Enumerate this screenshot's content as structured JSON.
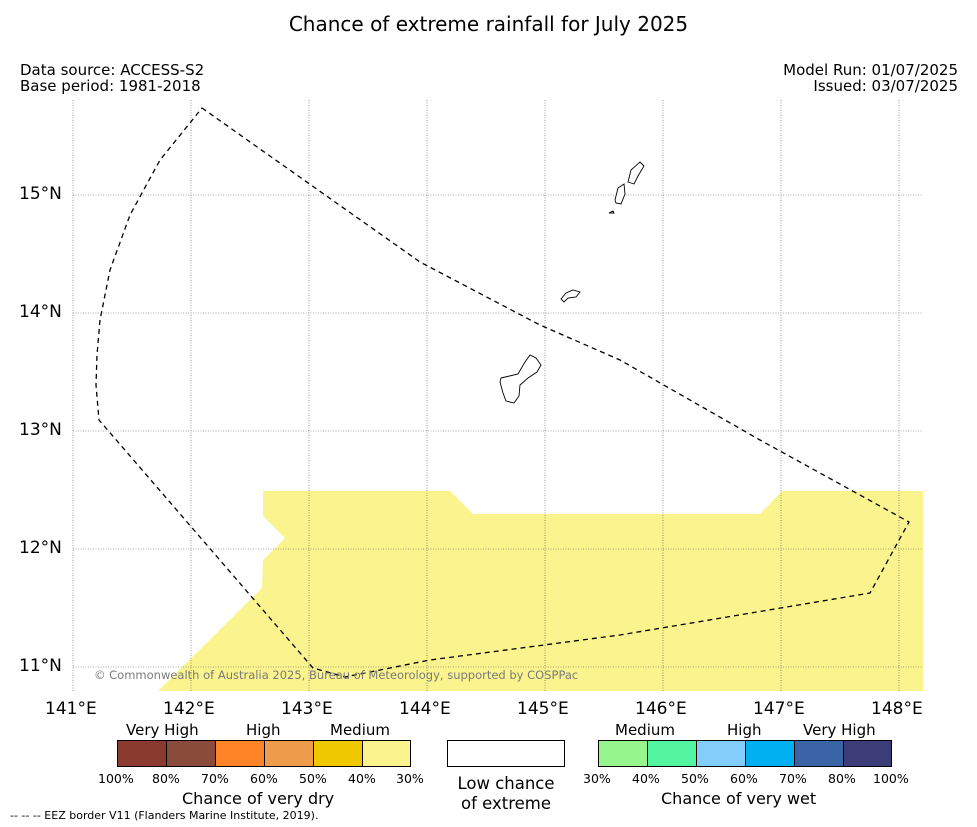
{
  "title": "Chance of extreme rainfall for July 2025",
  "meta": {
    "data_source": "Data source: ACCESS-S2",
    "base_period": "Base period: 1981-2018",
    "model_run": "Model Run: 01/07/2025",
    "issued": "Issued: 03/07/2025"
  },
  "map": {
    "lon_ticks": [
      "141°E",
      "142°E",
      "143°E",
      "144°E",
      "145°E",
      "146°E",
      "147°E",
      "148°E"
    ],
    "lat_ticks": [
      "15°N",
      "14°N",
      "13°N",
      "12°N",
      "11°N"
    ],
    "copyright": "© Commonwealth of Australia 2025, Bureau of Meteorology, supported by COSPPac",
    "fill_color": "#fbf38e",
    "eez_style": "dashed"
  },
  "legend": {
    "dry": {
      "categories": [
        "Very High",
        "High",
        "Medium"
      ],
      "colors": [
        "#8b3a2f",
        "#8b4b3a",
        "#ff8427",
        "#ee9c4c",
        "#f0c800",
        "#fbf38e"
      ],
      "ticks": [
        "100%",
        "80%",
        "70%",
        "60%",
        "50%",
        "40%",
        "30%"
      ],
      "title": "Chance of very dry"
    },
    "low": {
      "color": "#ffffff",
      "line1": "Low chance",
      "line2": "of extreme"
    },
    "wet": {
      "categories": [
        "Medium",
        "High",
        "Very High"
      ],
      "colors": [
        "#96f58c",
        "#54f5a0",
        "#82cdfa",
        "#00b0f0",
        "#3a64a5",
        "#3c3c78"
      ],
      "ticks": [
        "30%",
        "40%",
        "50%",
        "60%",
        "70%",
        "80%",
        "100%"
      ],
      "title": "Chance of very wet"
    }
  },
  "footer": "--  --  -- EEZ border V11 (Flanders Marine Institute, 2019)."
}
